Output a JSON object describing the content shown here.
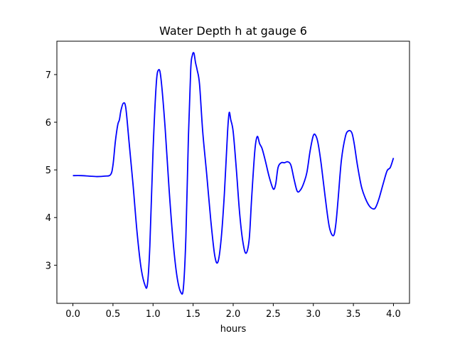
{
  "chart_data": {
    "type": "line",
    "title": "Water Depth h at gauge 6",
    "xlabel": "hours",
    "ylabel": "",
    "xlim": [
      -0.2,
      4.2
    ],
    "ylim": [
      2.2,
      7.7
    ],
    "grid": false,
    "x_ticks": [
      0.0,
      0.5,
      1.0,
      1.5,
      2.0,
      2.5,
      3.0,
      3.5,
      4.0
    ],
    "x_tick_labels": [
      "0.0",
      "0.5",
      "1.0",
      "1.5",
      "2.0",
      "2.5",
      "3.0",
      "3.5",
      "4.0"
    ],
    "y_ticks": [
      3,
      4,
      5,
      6,
      7
    ],
    "y_tick_labels": [
      "3",
      "4",
      "5",
      "6",
      "7"
    ],
    "series": [
      {
        "color": "#0000ff",
        "x": [
          0.0,
          0.1,
          0.2,
          0.3,
          0.4,
          0.47,
          0.5,
          0.53,
          0.56,
          0.58,
          0.6,
          0.63,
          0.66,
          0.7,
          0.75,
          0.8,
          0.85,
          0.9,
          0.93,
          0.96,
          1.0,
          1.04,
          1.07,
          1.1,
          1.15,
          1.2,
          1.25,
          1.3,
          1.35,
          1.38,
          1.41,
          1.44,
          1.47,
          1.49,
          1.51,
          1.53,
          1.55,
          1.58,
          1.62,
          1.67,
          1.72,
          1.77,
          1.81,
          1.85,
          1.89,
          1.93,
          1.95,
          1.97,
          2.0,
          2.04,
          2.08,
          2.12,
          2.16,
          2.2,
          2.23,
          2.27,
          2.3,
          2.33,
          2.36,
          2.4,
          2.45,
          2.5,
          2.53,
          2.56,
          2.6,
          2.64,
          2.68,
          2.72,
          2.76,
          2.8,
          2.84,
          2.88,
          2.92,
          2.96,
          3.0,
          3.03,
          3.06,
          3.1,
          3.15,
          3.2,
          3.25,
          3.28,
          3.31,
          3.35,
          3.4,
          3.44,
          3.48,
          3.51,
          3.55,
          3.6,
          3.65,
          3.7,
          3.75,
          3.78,
          3.82,
          3.87,
          3.92,
          3.96,
          4.0
        ],
        "values": [
          4.88,
          4.88,
          4.87,
          4.86,
          4.87,
          4.9,
          5.1,
          5.6,
          5.95,
          6.05,
          6.25,
          6.4,
          6.3,
          5.6,
          4.7,
          3.7,
          2.95,
          2.58,
          2.6,
          3.4,
          5.4,
          6.8,
          7.1,
          6.9,
          5.9,
          4.6,
          3.5,
          2.75,
          2.42,
          2.55,
          3.6,
          5.6,
          7.1,
          7.4,
          7.45,
          7.25,
          7.1,
          6.8,
          5.8,
          4.9,
          3.95,
          3.2,
          3.07,
          3.55,
          4.5,
          5.8,
          6.2,
          6.05,
          5.8,
          5.0,
          4.1,
          3.5,
          3.25,
          3.55,
          4.4,
          5.4,
          5.7,
          5.55,
          5.45,
          5.2,
          4.85,
          4.6,
          4.7,
          5.05,
          5.15,
          5.15,
          5.17,
          5.1,
          4.8,
          4.55,
          4.58,
          4.72,
          4.95,
          5.4,
          5.72,
          5.72,
          5.55,
          5.1,
          4.4,
          3.8,
          3.62,
          3.85,
          4.4,
          5.2,
          5.7,
          5.82,
          5.78,
          5.55,
          5.1,
          4.65,
          4.4,
          4.24,
          4.18,
          4.22,
          4.4,
          4.7,
          4.98,
          5.05,
          5.25
        ]
      }
    ]
  }
}
